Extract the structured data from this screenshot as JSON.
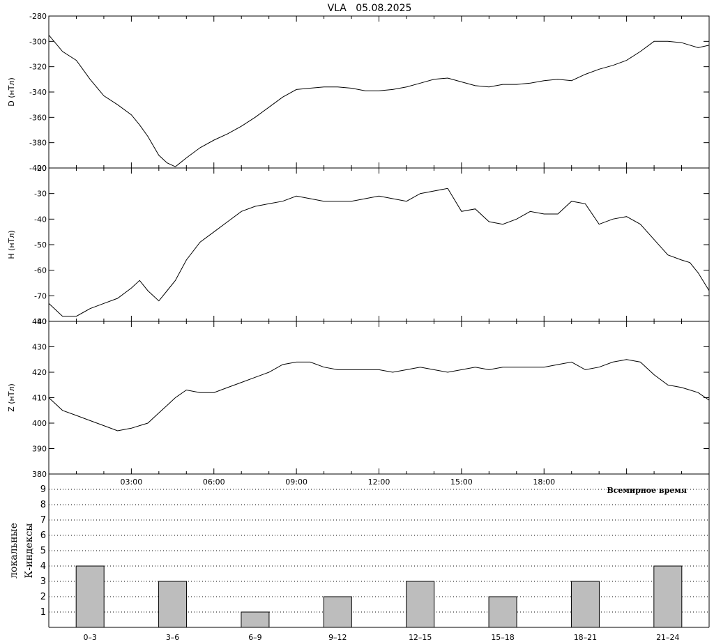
{
  "title": "VLA   05.08.2025",
  "chart_data": [
    {
      "type": "line",
      "panel": "D",
      "ylabel_main": "D (нТл)",
      "ylabel_outer": "...",
      "ylim": [
        -400,
        -280
      ],
      "y_ticks": [
        -400,
        -380,
        -360,
        -340,
        -320,
        -300,
        -280
      ],
      "x_unit": "hours UT",
      "x": [
        0,
        0.5,
        1,
        1.5,
        2,
        2.5,
        3,
        3.3,
        3.6,
        4,
        4.3,
        4.6,
        5,
        5.5,
        6,
        6.5,
        7,
        7.5,
        8,
        8.5,
        9,
        9.5,
        10,
        10.5,
        11,
        11.5,
        12,
        12.5,
        13,
        13.5,
        14,
        14.5,
        15,
        15.5,
        16,
        16.5,
        17,
        17.5,
        18,
        18.5,
        19,
        19.5,
        20,
        20.5,
        21,
        21.5,
        22,
        22.5,
        23,
        23.3,
        23.6,
        24
      ],
      "y": [
        -295,
        -308,
        -315,
        -330,
        -343,
        -350,
        -358,
        -366,
        -375,
        -390,
        -396,
        -399,
        -392,
        -384,
        -378,
        -373,
        -367,
        -360,
        -352,
        -344,
        -338,
        -337,
        -336,
        -336,
        -337,
        -339,
        -339,
        -338,
        -336,
        -333,
        -330,
        -329,
        -332,
        -335,
        -336,
        -334,
        -334,
        -333,
        -331,
        -330,
        -331,
        -326,
        -322,
        -319,
        -315,
        -308,
        -300,
        -300,
        -301,
        -303,
        -305,
        -303
      ]
    },
    {
      "type": "line",
      "panel": "H",
      "ylabel_main": "H (нТл)",
      "ylim": [
        -80,
        -20
      ],
      "y_ticks": [
        -80,
        -70,
        -60,
        -50,
        -40,
        -30,
        -20
      ],
      "x": [
        0,
        0.5,
        1,
        1.5,
        2,
        2.5,
        3,
        3.3,
        3.6,
        4,
        4.3,
        4.6,
        5,
        5.5,
        6,
        6.5,
        7,
        7.5,
        8,
        8.5,
        9,
        9.5,
        10,
        10.5,
        11,
        11.5,
        12,
        12.5,
        13,
        13.5,
        14,
        14.5,
        15,
        15.5,
        16,
        16.5,
        17,
        17.5,
        18,
        18.5,
        19,
        19.5,
        20,
        20.5,
        21,
        21.5,
        22,
        22.5,
        23,
        23.3,
        23.6,
        24
      ],
      "y": [
        -73,
        -78,
        -78,
        -75,
        -73,
        -71,
        -67,
        -64,
        -68,
        -72,
        -68,
        -64,
        -56,
        -49,
        -45,
        -41,
        -37,
        -35,
        -34,
        -33,
        -31,
        -32,
        -33,
        -33,
        -33,
        -32,
        -31,
        -32,
        -33,
        -30,
        -29,
        -28,
        -37,
        -36,
        -41,
        -42,
        -40,
        -37,
        -38,
        -38,
        -33,
        -34,
        -42,
        -40,
        -39,
        -42,
        -48,
        -54,
        -56,
        -57,
        -61,
        -68
      ]
    },
    {
      "type": "line",
      "panel": "Z",
      "ylabel_main": "Z (нТл)",
      "ylim": [
        380,
        440
      ],
      "y_ticks": [
        380,
        390,
        400,
        410,
        420,
        430,
        440
      ],
      "x": [
        0,
        0.5,
        1,
        1.5,
        2,
        2.5,
        3,
        3.3,
        3.6,
        4,
        4.3,
        4.6,
        5,
        5.5,
        6,
        6.5,
        7,
        7.5,
        8,
        8.5,
        9,
        9.5,
        10,
        10.5,
        11,
        11.5,
        12,
        12.5,
        13,
        13.5,
        14,
        14.5,
        15,
        15.5,
        16,
        16.5,
        17,
        17.5,
        18,
        18.5,
        19,
        19.5,
        20,
        20.5,
        21,
        21.5,
        22,
        22.5,
        23,
        23.3,
        23.6,
        24
      ],
      "y": [
        410,
        405,
        403,
        401,
        399,
        397,
        398,
        399,
        400,
        404,
        407,
        410,
        413,
        412,
        412,
        414,
        416,
        418,
        420,
        423,
        424,
        424,
        422,
        421,
        421,
        421,
        421,
        420,
        421,
        422,
        421,
        420,
        421,
        422,
        421,
        422,
        422,
        422,
        422,
        423,
        424,
        421,
        422,
        424,
        425,
        424,
        419,
        415,
        414,
        413,
        412,
        409
      ]
    },
    {
      "type": "bar",
      "panel": "K-index",
      "ylabel_line1": "локальные",
      "ylabel_line2": "К-индексы",
      "ylim": [
        0,
        10
      ],
      "y_ticks": [
        1,
        2,
        3,
        4,
        5,
        6,
        7,
        8,
        9
      ],
      "categories": [
        "0–3",
        "3–6",
        "6–9",
        "9–12",
        "12–15",
        "15–18",
        "18–21",
        "21–24"
      ],
      "values": [
        4,
        3,
        1,
        2,
        3,
        2,
        3,
        4
      ],
      "grid": "dotted-horizontal"
    }
  ],
  "x_tick_labels": [
    "03:00",
    "06:00",
    "09:00",
    "12:00",
    "15:00",
    "18:00"
  ],
  "x_caption": "Всемирное время",
  "colors": {
    "line": "#000000",
    "bar_fill": "#bdbdbd",
    "grid": "#000000"
  }
}
